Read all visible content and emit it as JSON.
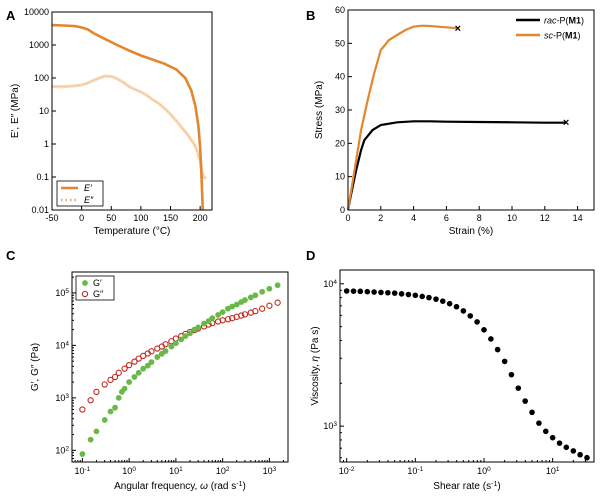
{
  "figure": {
    "colors": {
      "orange": "#E3862F",
      "orange_light": "#F2C08A",
      "black": "#000000",
      "green": "#6BB84A",
      "red": "#C0281E"
    }
  },
  "chart_data": [
    {
      "panel": "A",
      "type": "line",
      "xlabel_parts": [
        "Temperature (°C)"
      ],
      "ylabel": "E′, E″ (MPa)",
      "xlim": [
        -50,
        220
      ],
      "ylim": [
        0.01,
        10000
      ],
      "yscale": "log",
      "xticks": [
        -50,
        0,
        50,
        100,
        150,
        200
      ],
      "yticks": [
        0.01,
        0.1,
        1,
        10,
        100,
        1000,
        10000
      ],
      "ytick_labels": [
        "0.01",
        "0.1",
        "1",
        "10",
        "100",
        "1000",
        "10000"
      ],
      "legend_position": "bottom-left",
      "series": [
        {
          "name": "E′",
          "color_key": "orange",
          "style": "solid",
          "x": [
            -50,
            -30,
            -10,
            0,
            10,
            20,
            40,
            60,
            80,
            100,
            120,
            140,
            160,
            175,
            185,
            192,
            197,
            200,
            202,
            203.5,
            204.5
          ],
          "y": [
            4000,
            3900,
            3700,
            3400,
            3000,
            2300,
            1500,
            1000,
            680,
            480,
            360,
            270,
            180,
            100,
            42,
            14,
            3.5,
            0.8,
            0.15,
            0.03,
            0.01
          ]
        },
        {
          "name": "E″",
          "color_key": "orange_light",
          "style": "dotted",
          "x": [
            -50,
            -30,
            -10,
            0,
            10,
            20,
            30,
            40,
            50,
            60,
            70,
            80,
            90,
            100,
            110,
            120,
            130,
            140,
            150,
            160,
            170,
            180,
            190,
            195,
            200,
            203,
            206,
            210
          ],
          "y": [
            55,
            55,
            58,
            62,
            70,
            85,
            100,
            115,
            112,
            95,
            75,
            55,
            45,
            38,
            30,
            22,
            17,
            12,
            8,
            5,
            3,
            1.8,
            1.0,
            0.6,
            0.3,
            0.15,
            0.1,
            0.09
          ]
        }
      ]
    },
    {
      "panel": "B",
      "type": "line",
      "xlabel_parts": [
        "Strain (%)"
      ],
      "ylabel": "Stress (MPa)",
      "xlim": [
        0,
        15
      ],
      "ylim": [
        0,
        60
      ],
      "xticks": [
        0,
        2,
        4,
        6,
        8,
        10,
        12,
        14
      ],
      "yticks": [
        0,
        10,
        20,
        30,
        40,
        50,
        60
      ],
      "legend_position": "top-right",
      "break_marker": "×",
      "series": [
        {
          "name_parts": [
            {
              "t": "rac",
              "i": true
            },
            {
              "t": "-P("
            },
            {
              "t": "M1",
              "b": true
            },
            {
              "t": ")"
            }
          ],
          "color_key": "black",
          "x": [
            0,
            0.2,
            0.5,
            0.8,
            1.0,
            1.5,
            2,
            3,
            4,
            5,
            6,
            8,
            10,
            12,
            13.3
          ],
          "y": [
            0,
            5,
            12,
            18,
            21,
            24,
            25.5,
            26.3,
            26.6,
            26.6,
            26.5,
            26.4,
            26.3,
            26.2,
            26.2
          ]
        },
        {
          "name_parts": [
            {
              "t": "sc",
              "i": true
            },
            {
              "t": "-P("
            },
            {
              "t": "M1",
              "b": true
            },
            {
              "t": ")"
            }
          ],
          "color_key": "orange",
          "x": [
            0,
            0.2,
            0.5,
            0.8,
            1.2,
            1.6,
            2.0,
            2.5,
            3.0,
            3.5,
            4.0,
            4.5,
            5.0,
            5.5,
            6.0,
            6.7
          ],
          "y": [
            0,
            6,
            15,
            24,
            33,
            41,
            48,
            51,
            52.5,
            54,
            55,
            55.3,
            55.2,
            55,
            54.8,
            54.5
          ]
        }
      ]
    },
    {
      "panel": "C",
      "type": "scatter",
      "xlabel_parts": [
        "Angular frequency, ",
        {
          "t": "ω",
          "i": true
        },
        " (rad s",
        {
          "t": "-1",
          "sup": true
        },
        ")"
      ],
      "ylabel_parts": [
        "G′, G″ (Pa)"
      ],
      "xscale": "log",
      "yscale": "log",
      "xlim": [
        0.06,
        2500
      ],
      "ylim": [
        60,
        250000
      ],
      "xtick_exps": [
        -1,
        0,
        1,
        2,
        3
      ],
      "ytick_exps": [
        2,
        3,
        4,
        5
      ],
      "legend_position": "top-left",
      "series": [
        {
          "name": "G′",
          "color_key": "green",
          "marker": "filled-circle",
          "x": [
            0.1,
            0.15,
            0.2,
            0.3,
            0.4,
            0.5,
            0.6,
            0.7,
            0.8,
            1,
            1.3,
            1.6,
            2,
            2.5,
            3,
            4,
            5,
            6,
            8,
            10,
            13,
            16,
            20,
            25,
            30,
            40,
            50,
            60,
            80,
            100,
            130,
            160,
            200,
            250,
            300,
            400,
            500,
            700,
            1000,
            1500
          ],
          "y": [
            85,
            160,
            230,
            380,
            550,
            650,
            1000,
            1300,
            1500,
            2000,
            2500,
            3000,
            3600,
            4100,
            4800,
            6000,
            6900,
            7800,
            9500,
            11000,
            13000,
            15000,
            17000,
            20000,
            22000,
            26000,
            29000,
            33000,
            38000,
            43000,
            50000,
            55000,
            60000,
            67000,
            73000,
            82000,
            90000,
            105000,
            120000,
            140000
          ]
        },
        {
          "name": "G″",
          "color_key": "red",
          "marker": "open-circle",
          "x": [
            0.1,
            0.15,
            0.2,
            0.3,
            0.4,
            0.5,
            0.6,
            0.8,
            1,
            1.3,
            1.6,
            2,
            2.5,
            3,
            4,
            5,
            6,
            8,
            10,
            13,
            16,
            20,
            25,
            30,
            40,
            50,
            60,
            80,
            100,
            130,
            160,
            200,
            250,
            300,
            400,
            500,
            700,
            1000,
            1500
          ],
          "y": [
            600,
            900,
            1300,
            1800,
            2200,
            2500,
            3000,
            3600,
            4200,
            4900,
            5600,
            6300,
            7000,
            7700,
            8700,
            9500,
            10500,
            12000,
            13500,
            15000,
            16500,
            18000,
            19500,
            21000,
            23000,
            25000,
            26500,
            28500,
            30000,
            31500,
            33000,
            35000,
            37000,
            39000,
            42000,
            45000,
            50000,
            57000,
            65000
          ]
        }
      ]
    },
    {
      "panel": "D",
      "type": "scatter",
      "xlabel_parts": [
        "Shear rate (s",
        {
          "t": "-1",
          "sup": true
        },
        ")"
      ],
      "ylabel_parts": [
        "Viscosity, ",
        {
          "t": "η",
          "i": true
        },
        " (Pa s)"
      ],
      "xscale": "log",
      "yscale": "log",
      "xlim": [
        0.008,
        40
      ],
      "ylim": [
        560,
        12500
      ],
      "xtick_exps": [
        -2,
        -1,
        0,
        1
      ],
      "ytick_exps": [
        3,
        4
      ],
      "series": [
        {
          "name": "",
          "color_key": "black",
          "marker": "filled-circle",
          "x": [
            0.01,
            0.0126,
            0.0158,
            0.02,
            0.0251,
            0.0316,
            0.0398,
            0.0501,
            0.0631,
            0.0794,
            0.1,
            0.126,
            0.158,
            0.2,
            0.251,
            0.316,
            0.398,
            0.501,
            0.631,
            0.794,
            1.0,
            1.26,
            1.58,
            2.0,
            2.51,
            3.16,
            3.98,
            5.01,
            6.31,
            7.94,
            10.0,
            12.6,
            15.8,
            20.0,
            25.1,
            31.6
          ],
          "y": [
            8900,
            8880,
            8850,
            8800,
            8750,
            8700,
            8650,
            8600,
            8500,
            8400,
            8300,
            8150,
            8000,
            7800,
            7550,
            7250,
            6900,
            6450,
            5950,
            5400,
            4750,
            4100,
            3450,
            2850,
            2300,
            1850,
            1500,
            1250,
            1050,
            920,
            830,
            760,
            710,
            670,
            630,
            600
          ]
        }
      ]
    }
  ]
}
